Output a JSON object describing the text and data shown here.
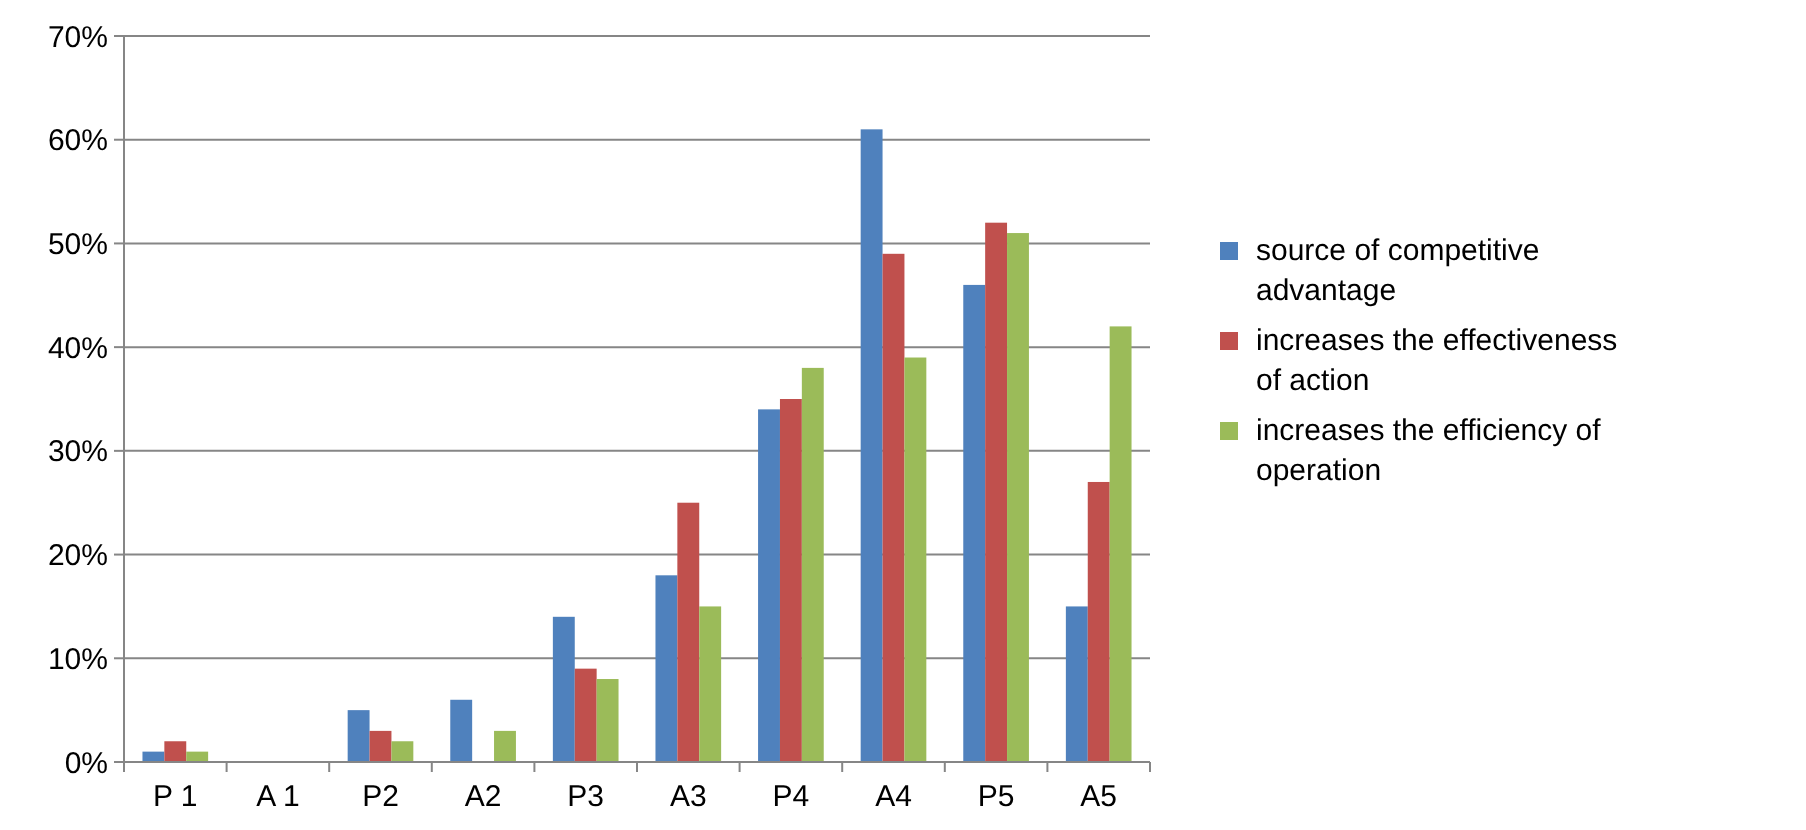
{
  "chart_data": {
    "type": "bar",
    "categories": [
      "P 1",
      "A 1",
      "P2",
      "A2",
      "P3",
      "A3",
      "P4",
      "A4",
      "P5",
      "A5"
    ],
    "series": [
      {
        "name": "source of competitive advantage",
        "color": "#4f81bd",
        "values": [
          1,
          0,
          5,
          6,
          14,
          18,
          34,
          61,
          46,
          15
        ]
      },
      {
        "name": "increases the effectiveness of action",
        "color": "#c0504d",
        "values": [
          2,
          0,
          3,
          0,
          9,
          25,
          35,
          49,
          52,
          27
        ]
      },
      {
        "name": "increases the efficiency of operation",
        "color": "#9bbb59",
        "values": [
          1,
          0,
          2,
          3,
          8,
          15,
          38,
          39,
          51,
          42
        ]
      }
    ],
    "ylim": [
      0,
      70
    ],
    "yticks": [
      {
        "value": 0,
        "label": "0%"
      },
      {
        "value": 10,
        "label": "10%"
      },
      {
        "value": 20,
        "label": "20%"
      },
      {
        "value": 30,
        "label": "30%"
      },
      {
        "value": 40,
        "label": "40%"
      },
      {
        "value": 50,
        "label": "50%"
      },
      {
        "value": 60,
        "label": "60%"
      },
      {
        "value": 70,
        "label": "70%"
      }
    ],
    "grid": "y",
    "legend": "right"
  }
}
